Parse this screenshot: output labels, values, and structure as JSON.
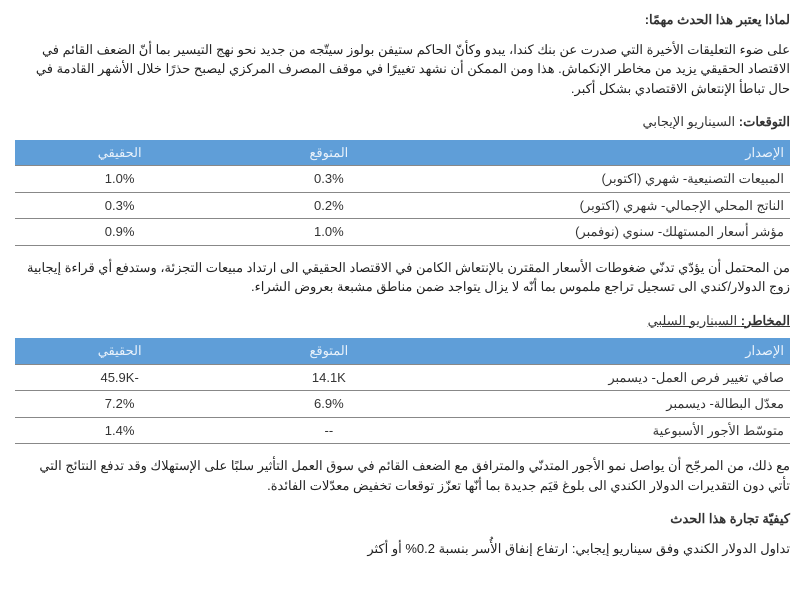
{
  "heading1": "لماذا يعتبر هذا الحدث مهمًا:",
  "para1": "على ضوء التعليقات الأخيرة التي صدرت عن بنك كندا، يبدو وكأنّ الحاكم ستيفن بولوز سيتّجه من جديد نحو نهج التيسير بما أنّ الضعف القائم في الاقتصاد الحقيقي يزيد من مخاطر الإنكماش. هذا ومن الممكن أن نشهد تغييرًا في موقف المصرف المركزي ليصبح حذرًا خلال الأشهر القادمة في حال تباطأ الإنتعاش الاقتصادي بشكل أكبر.",
  "forecast_label_b": "التوقعات:",
  "forecast_label_rest": " السيناريو الإيجابي",
  "table_headers": {
    "release": "الإصدار",
    "expected": "المتوقع",
    "actual": "الحقيقي"
  },
  "table1": {
    "rows": [
      {
        "release": "المبيعات التصنيعية- شهري (اكتوبر)",
        "expected": "0.3%",
        "actual": "1.0%"
      },
      {
        "release": "الناتج المحلي الإجمالي- شهري (اكتوبر)",
        "expected": "0.2%",
        "actual": "0.3%"
      },
      {
        "release": "مؤشر أسعار المستهلك- سنوي (نوفمبر)",
        "expected": "1.0%",
        "actual": "0.9%"
      }
    ]
  },
  "para2": "من المحتمل أن يؤدّي تدنّي ضغوطات الأسعار المقترن بالإنتعاش الكامن في الاقتصاد الحقيقي الى ارتداد مبيعات التجزئة، وستدفع أي قراءة إيجابية زوج الدولار/كندي الى تسجيل تراجع ملموس بما أنّه لا يزال يتواجد ضمن مناطق مشبعة بعروض الشراء.",
  "risk_label_b": "المخاطر:",
  "risk_label_rest": " السيناريو السلبي",
  "table2": {
    "rows": [
      {
        "release": "صافي تغيير فرص العمل- ديسمبر",
        "expected": "14.1K",
        "actual": "45.9K-"
      },
      {
        "release": "معدّل البطالة- ديسمبر",
        "expected": "6.9%",
        "actual": "7.2%"
      },
      {
        "release": "متوسّط الأجور الأسبوعية",
        "expected": "--",
        "actual": "1.4%"
      }
    ]
  },
  "para3": "مع ذلك، من المرجّح أن يواصل نمو الأجور المتدنّي والمترافق مع الضعف القائم في سوق العمل التأثير سلبًا على الإستهلاك وقد تدفع النتائج التي تأتي دون التقديرات الدولار الكندي الى بلوغ قيَم جديدة بما أنّها تعزّز توقعات تخفيض معدّلات الفائدة.",
  "heading2": "كيفيّة تجارة هذا الحدث",
  "para4": "تداول الدولار الكندي وفق سيناريو إيجابي: ارتفاع إنفاق الأُسر بنسبة 0.2% أو أكثر",
  "style": {
    "header_bg": "#5f9ed8",
    "header_fg": "#e9f2fb",
    "border_color": "#888888"
  }
}
